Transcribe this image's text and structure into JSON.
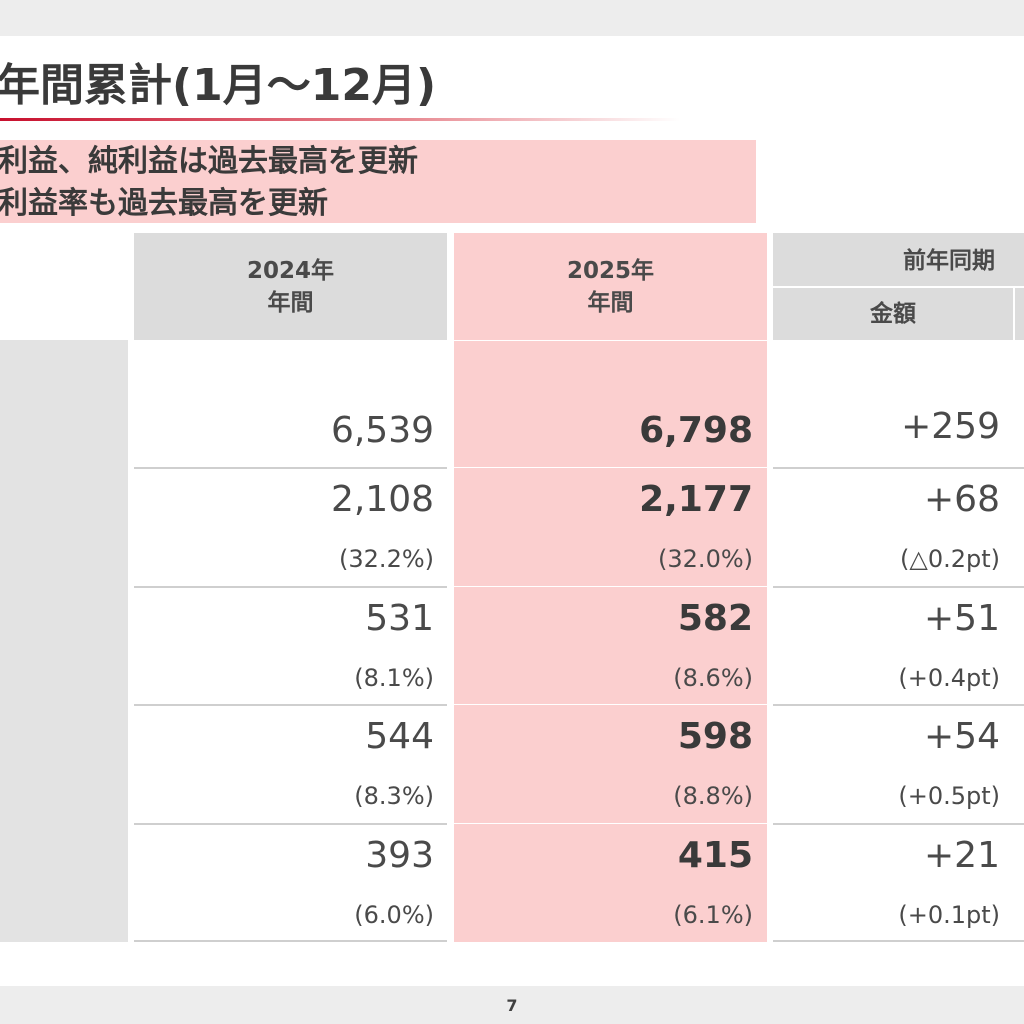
{
  "title": "年間累計(1月〜12月)",
  "highlights": [
    "利益、純利益は過去最高を更新",
    "利益率も過去最高を更新"
  ],
  "table": {
    "headers": {
      "col2024": {
        "year": "2024年",
        "period": "年間"
      },
      "col2025": {
        "year": "2025年",
        "period": "年間"
      },
      "colYoY": {
        "title": "前年同期",
        "amount": "金額"
      }
    },
    "rows": [
      {
        "v2024": "6,539",
        "v2025": "6,798",
        "diff": "+259"
      },
      {
        "v2024": "2,108",
        "p2024": "(32.2%)",
        "v2025": "2,177",
        "p2025": "(32.0%)",
        "diff": "+68",
        "pdiff": "(△0.2pt)"
      },
      {
        "v2024": "531",
        "p2024": "(8.1%)",
        "v2025": "582",
        "p2025": "(8.6%)",
        "diff": "+51",
        "pdiff": "(+0.4pt)"
      },
      {
        "v2024": "544",
        "p2024": "(8.3%)",
        "v2025": "598",
        "p2025": "(8.8%)",
        "diff": "+54",
        "pdiff": "(+0.5pt)"
      },
      {
        "v2024": "393",
        "p2024": "(6.0%)",
        "v2025": "415",
        "p2025": "(6.1%)",
        "diff": "+21",
        "pdiff": "(+0.1pt)"
      }
    ]
  },
  "page_number": "7"
}
